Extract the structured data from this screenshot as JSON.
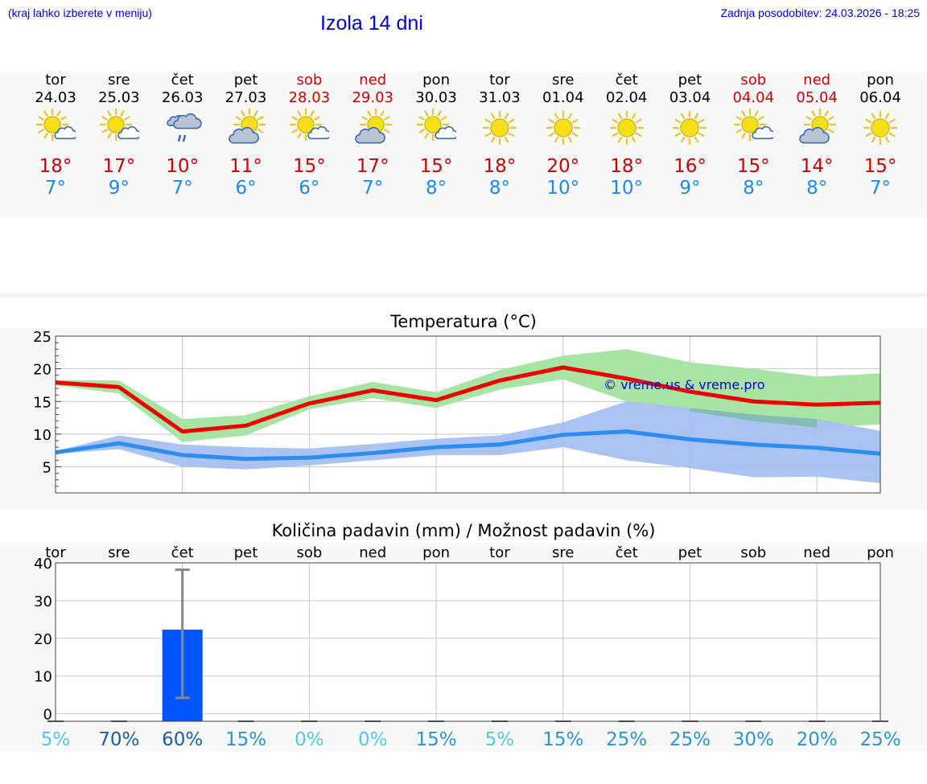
{
  "header": {
    "hint": "(kraj lahko izberete v meniju)",
    "title": "Izola 14 dni",
    "updated": "Zadnja posodobitev: 24.03.2026 - 18:25"
  },
  "days": [
    {
      "name": "tor",
      "date": "24.03",
      "weekend": false,
      "icon": "sun-cloud-icon",
      "tmax": "18°",
      "tmin": "7°"
    },
    {
      "name": "sre",
      "date": "25.03",
      "weekend": false,
      "icon": "sun-cloud-icon",
      "tmax": "17°",
      "tmin": "9°"
    },
    {
      "name": "čet",
      "date": "26.03",
      "weekend": false,
      "icon": "rain-cloud-icon",
      "tmax": "10°",
      "tmin": "7°"
    },
    {
      "name": "pet",
      "date": "27.03",
      "weekend": false,
      "icon": "cloud-sun-icon",
      "tmax": "11°",
      "tmin": "6°"
    },
    {
      "name": "sob",
      "date": "28.03",
      "weekend": true,
      "icon": "sun-cloud-icon",
      "tmax": "15°",
      "tmin": "6°"
    },
    {
      "name": "ned",
      "date": "29.03",
      "weekend": true,
      "icon": "cloud-sun-icon",
      "tmax": "17°",
      "tmin": "7°"
    },
    {
      "name": "pon",
      "date": "30.03",
      "weekend": false,
      "icon": "sun-cloud-icon",
      "tmax": "15°",
      "tmin": "8°"
    },
    {
      "name": "tor",
      "date": "31.03",
      "weekend": false,
      "icon": "sun-icon",
      "tmax": "18°",
      "tmin": "8°"
    },
    {
      "name": "sre",
      "date": "01.04",
      "weekend": false,
      "icon": "sun-icon",
      "tmax": "20°",
      "tmin": "10°"
    },
    {
      "name": "čet",
      "date": "02.04",
      "weekend": false,
      "icon": "sun-icon",
      "tmax": "18°",
      "tmin": "10°"
    },
    {
      "name": "pet",
      "date": "03.04",
      "weekend": false,
      "icon": "sun-icon",
      "tmax": "16°",
      "tmin": "9°"
    },
    {
      "name": "sob",
      "date": "04.04",
      "weekend": true,
      "icon": "sun-cloud-icon",
      "tmax": "15°",
      "tmin": "8°"
    },
    {
      "name": "ned",
      "date": "05.04",
      "weekend": true,
      "icon": "cloud-sun-icon",
      "tmax": "14°",
      "tmin": "8°"
    },
    {
      "name": "pon",
      "date": "06.04",
      "weekend": false,
      "icon": "sun-icon",
      "tmax": "15°",
      "tmin": "7°"
    }
  ],
  "colors": {
    "max_line": "#ee0000",
    "max_band": "#a8e4a4",
    "min_line": "#2d8cf0",
    "min_band": "#a6c0f2",
    "overlap": "#7cbca8",
    "bar": "#0055ff",
    "whisker": "#888888"
  },
  "chart_data": [
    {
      "type": "line",
      "title": "Temperatura (°C)",
      "watermark": "© vreme.us & vreme.pro",
      "ylim": [
        1,
        25
      ],
      "yticks": [
        5,
        10,
        15,
        20,
        25
      ],
      "x": [
        0,
        1,
        2,
        3,
        4,
        5,
        6,
        7,
        8,
        9,
        10,
        11,
        12,
        13
      ],
      "series": [
        {
          "name": "max",
          "values": [
            17.9,
            17.2,
            10.4,
            11.3,
            14.7,
            16.7,
            15.2,
            18.2,
            20.2,
            18.5,
            16.5,
            15.0,
            14.5,
            14.8
          ],
          "band_low": [
            17.5,
            16.2,
            8.8,
            9.8,
            13.8,
            15.5,
            14.0,
            16.8,
            18.4,
            15.0,
            13.5,
            12.0,
            11.0,
            11.5
          ],
          "band_high": [
            18.3,
            18.2,
            12.3,
            12.9,
            15.8,
            18.0,
            16.4,
            19.8,
            22.0,
            23.0,
            21.0,
            20.0,
            18.8,
            19.3
          ]
        },
        {
          "name": "min",
          "values": [
            7.2,
            8.6,
            6.8,
            6.2,
            6.4,
            7.1,
            8.0,
            8.4,
            9.9,
            10.4,
            9.2,
            8.4,
            7.9,
            7.0
          ],
          "band_low": [
            7.0,
            7.7,
            5.0,
            4.6,
            5.2,
            6.0,
            6.8,
            6.8,
            8.0,
            6.0,
            4.8,
            3.4,
            3.5,
            2.5
          ],
          "band_high": [
            7.4,
            9.8,
            8.4,
            8.0,
            7.8,
            8.5,
            9.3,
            9.8,
            11.8,
            15.0,
            14.0,
            13.0,
            12.3,
            10.5
          ]
        }
      ]
    },
    {
      "type": "bar",
      "title": "Količina padavin (mm) / Možnost padavin (%)",
      "ylim": [
        -2,
        40
      ],
      "yticks": [
        0,
        10,
        20,
        30,
        40
      ],
      "categories": [
        "tor",
        "sre",
        "čet",
        "pet",
        "sob",
        "ned",
        "pon",
        "tor",
        "sre",
        "čet",
        "pet",
        "sob",
        "ned",
        "pon"
      ],
      "values": [
        0,
        0,
        22.3,
        0,
        0,
        0,
        0,
        0,
        0,
        0,
        0,
        0,
        0,
        0
      ],
      "error_low": [
        0,
        0,
        4.2,
        0,
        0,
        0,
        0,
        0,
        0,
        0,
        0,
        0,
        0,
        0
      ],
      "error_high": [
        0,
        0,
        38.2,
        0,
        0,
        0,
        0,
        0,
        0,
        0,
        0,
        0,
        0,
        0
      ],
      "probability": [
        "5%",
        "70%",
        "60%",
        "15%",
        "0%",
        "0%",
        "15%",
        "5%",
        "15%",
        "25%",
        "25%",
        "30%",
        "20%",
        "25%"
      ],
      "probability_colors": [
        "#55c8e4",
        "#1a5fa8",
        "#1a5fa8",
        "#2a96d4",
        "#55c8e4",
        "#55c8e4",
        "#2a96d4",
        "#55c8e4",
        "#2a96d4",
        "#2a96d4",
        "#2a96d4",
        "#2a96d4",
        "#2a96d4",
        "#2a96d4"
      ]
    }
  ]
}
